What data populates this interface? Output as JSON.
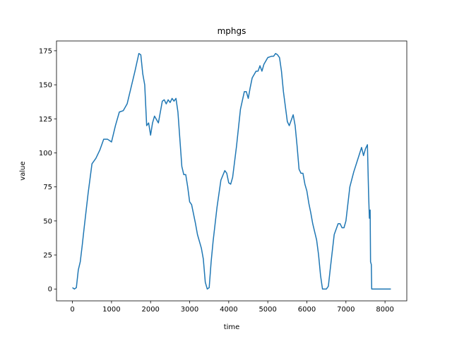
{
  "chart_data": {
    "type": "line",
    "title": "mphgs",
    "xlabel": "time",
    "ylabel": "value",
    "xlim": [
      -408,
      8558
    ],
    "ylim": [
      -8.7,
      182.2
    ],
    "xticks": [
      0,
      1000,
      2000,
      3000,
      4000,
      5000,
      6000,
      7000,
      8000
    ],
    "yticks": [
      0,
      25,
      50,
      75,
      100,
      125,
      150,
      175
    ],
    "series": [
      {
        "name": "value",
        "color": "#1f77b4",
        "x": [
          0,
          50,
          100,
          150,
          200,
          250,
          300,
          400,
          500,
          600,
          700,
          800,
          900,
          1000,
          1100,
          1200,
          1300,
          1400,
          1500,
          1600,
          1700,
          1750,
          1800,
          1850,
          1900,
          1950,
          2000,
          2050,
          2100,
          2200,
          2300,
          2350,
          2400,
          2450,
          2500,
          2550,
          2600,
          2650,
          2700,
          2750,
          2800,
          2850,
          2900,
          2950,
          3000,
          3050,
          3100,
          3150,
          3200,
          3300,
          3350,
          3400,
          3450,
          3500,
          3550,
          3600,
          3700,
          3800,
          3900,
          3950,
          4000,
          4050,
          4100,
          4200,
          4300,
          4400,
          4450,
          4500,
          4550,
          4600,
          4700,
          4750,
          4800,
          4850,
          4900,
          5000,
          5100,
          5150,
          5200,
          5250,
          5300,
          5350,
          5400,
          5500,
          5550,
          5600,
          5650,
          5700,
          5750,
          5800,
          5850,
          5900,
          5950,
          6000,
          6050,
          6100,
          6150,
          6200,
          6250,
          6300,
          6350,
          6400,
          6500,
          6550,
          6600,
          6700,
          6800,
          6850,
          6900,
          6950,
          7000,
          7100,
          7200,
          7300,
          7400,
          7450,
          7500,
          7550,
          7580,
          7600,
          7620,
          7630,
          7650,
          7660,
          7700,
          8150
        ],
        "values": [
          1,
          0,
          1,
          14,
          20,
          32,
          45,
          70,
          92,
          96,
          102,
          110,
          110,
          108,
          120,
          130,
          131,
          136,
          148,
          160,
          173,
          172,
          158,
          150,
          120,
          122,
          113,
          122,
          127,
          122,
          138,
          139,
          136,
          139,
          137,
          140,
          138,
          140,
          130,
          110,
          90,
          84,
          84,
          75,
          64,
          62,
          55,
          48,
          40,
          30,
          22,
          5,
          0,
          1,
          20,
          35,
          60,
          80,
          87,
          85,
          78,
          77,
          82,
          105,
          132,
          145,
          145,
          140,
          148,
          155,
          160,
          160,
          164,
          160,
          165,
          170,
          171,
          171,
          173,
          172,
          170,
          160,
          145,
          123,
          120,
          124,
          128,
          120,
          105,
          88,
          85,
          85,
          77,
          72,
          63,
          56,
          48,
          42,
          36,
          25,
          10,
          0,
          0,
          2,
          15,
          40,
          48,
          48,
          45,
          45,
          50,
          75,
          86,
          95,
          104,
          98,
          103,
          106,
          70,
          52,
          58,
          20,
          18,
          0,
          0,
          0
        ]
      }
    ]
  }
}
